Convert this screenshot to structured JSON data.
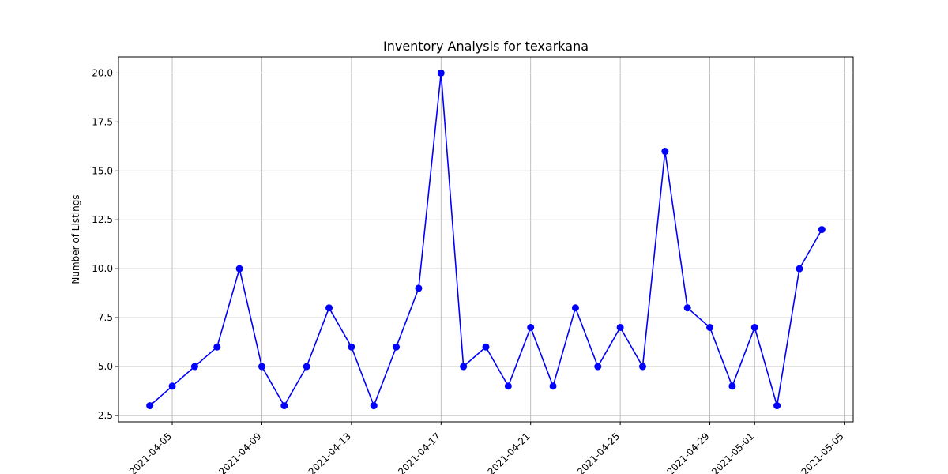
{
  "chart_data": {
    "type": "line",
    "title": "Inventory Analysis for texarkana",
    "xlabel": "",
    "ylabel": "Number of Listings",
    "x": [
      "2021-04-04",
      "2021-04-05",
      "2021-04-06",
      "2021-04-07",
      "2021-04-08",
      "2021-04-09",
      "2021-04-10",
      "2021-04-11",
      "2021-04-12",
      "2021-04-13",
      "2021-04-14",
      "2021-04-15",
      "2021-04-16",
      "2021-04-17",
      "2021-04-18",
      "2021-04-19",
      "2021-04-20",
      "2021-04-21",
      "2021-04-22",
      "2021-04-23",
      "2021-04-24",
      "2021-04-25",
      "2021-04-26",
      "2021-04-27",
      "2021-04-28",
      "2021-04-29",
      "2021-04-30",
      "2021-05-01",
      "2021-05-02",
      "2021-05-03",
      "2021-05-04"
    ],
    "series": [
      {
        "values": [
          3,
          4,
          5,
          6,
          10,
          5,
          3,
          5,
          8,
          6,
          3,
          6,
          9,
          20,
          5,
          6,
          4,
          7,
          4,
          8,
          5,
          7,
          5,
          16,
          8,
          7,
          4,
          7,
          3,
          10,
          12
        ]
      }
    ],
    "ylim": [
      2.175,
      20.825
    ],
    "xlim": [
      "2021-04-02 14:24",
      "2021-05-05 09:36"
    ],
    "x_ticks": [
      "2021-04-05",
      "2021-04-09",
      "2021-04-13",
      "2021-04-17",
      "2021-04-21",
      "2021-04-25",
      "2021-04-29",
      "2021-05-01",
      "2021-05-05"
    ],
    "y_ticks": [
      "2.5",
      "5.0",
      "7.5",
      "10.0",
      "12.5",
      "15.0",
      "17.5",
      "20.0"
    ],
    "grid": true,
    "color": "#0000ff",
    "marker": "circle"
  }
}
